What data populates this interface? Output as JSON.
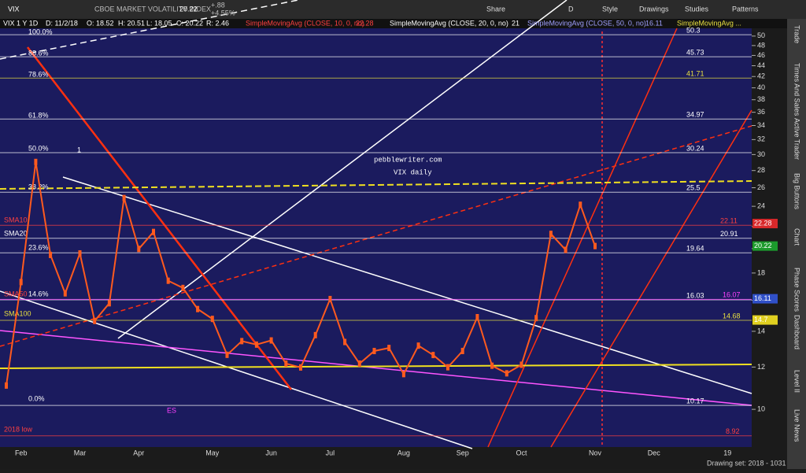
{
  "toolbar": {
    "symbol": "VIX",
    "description": "CBOE MARKET VOLATILITY INDEX",
    "last": "20.22",
    "change": "+.88",
    "change_pct": "+4.55%",
    "buttons": [
      "Share",
      "D",
      "Style",
      "Drawings",
      "Studies",
      "Patterns"
    ]
  },
  "header": {
    "items": [
      "VIX 1 Y 1D",
      "D: 11/2/18",
      "O: 18.52",
      "H: 20.51",
      "L: 18.05",
      "C: 20.22",
      "R: 2.46",
      "SimpleMovingAvg (CLOSE, 10, 0, no)",
      "22.28",
      "SimpleMovingAvg (CLOSE, 20, 0, no)",
      "21",
      "SimpleMovingAvg (CLOSE, 50, 0, no)",
      "16.11",
      "SimpleMovingAvg ..."
    ]
  },
  "side_tabs": [
    "Trade",
    "Times And Sales",
    "Active Trader",
    "Big Buttons",
    "Chart",
    "Phase Scores",
    "Dashboard",
    "Level II",
    "Live News"
  ],
  "footer": {
    "drawing_set": "Drawing set: 2018 - 1031"
  },
  "chart_data": {
    "type": "line",
    "log_scale": true,
    "categories": [
      null,
      "Feb",
      null,
      null,
      null,
      "Mar",
      null,
      null,
      null,
      "Apr",
      null,
      null,
      null,
      null,
      "May",
      null,
      null,
      null,
      "Jun",
      null,
      null,
      null,
      "Jul",
      null,
      null,
      null,
      null,
      "Aug",
      null,
      null,
      null,
      "Sep",
      null,
      null,
      null,
      "Oct",
      null,
      null,
      null,
      null,
      "Nov",
      null,
      null,
      null,
      "Dec",
      null,
      null,
      null,
      null,
      "19",
      null
    ],
    "series": [
      {
        "name": "VIX",
        "color": "#ff5a1e",
        "values": [
          11.08,
          17.31,
          29.06,
          19.46,
          16.49,
          19.59,
          14.64,
          15.8,
          24.87,
          19.97,
          21.49,
          17.41,
          16.88,
          15.41,
          14.77,
          12.65,
          13.42,
          13.22,
          13.46,
          12.18,
          11.98,
          13.77,
          16.09,
          13.37,
          12.18,
          12.86,
          13.03,
          11.64,
          13.16,
          12.64,
          11.99,
          12.86,
          14.88,
          12.07,
          11.68,
          12.12,
          14.82,
          21.31,
          19.89,
          24.16,
          20.22,
          null,
          null,
          null,
          null,
          null,
          null,
          null,
          null,
          null,
          null
        ]
      }
    ],
    "ylim": [
      8.5,
      51.7
    ],
    "yticks": [
      10,
      12,
      14,
      16,
      18,
      20,
      22,
      24,
      26,
      28,
      30,
      32,
      34,
      36,
      38,
      40,
      42,
      44,
      46,
      48,
      50
    ],
    "levels": [
      {
        "value": 50.3,
        "color": "#ffffff"
      },
      {
        "value": 45.73,
        "color": "#ffffff"
      },
      {
        "value": 41.71,
        "color": "#e8e040"
      },
      {
        "value": 34.97,
        "color": "#ffffff"
      },
      {
        "value": 30.24,
        "color": "#ffffff"
      },
      {
        "value": 25.5,
        "color": "#ffffff"
      },
      {
        "value": 22.11,
        "color": "#ff4040"
      },
      {
        "value": 20.91,
        "color": "#ffffff"
      },
      {
        "value": 19.64,
        "color": "#ffffff"
      },
      {
        "value": 16.03,
        "color": "#ffffff"
      },
      {
        "value": 16.07,
        "color": "#ff40ff"
      },
      {
        "value": 14.68,
        "color": "#e8e040"
      },
      {
        "value": 10.17,
        "color": "#ffffff"
      },
      {
        "value": 8.92,
        "color": "#ff4040"
      }
    ],
    "price_tags": [
      {
        "value": 22.28,
        "color": "#d8282a"
      },
      {
        "value": 20.22,
        "color": "#1c9a2c"
      },
      {
        "value": 16.11,
        "color": "#3050c8"
      },
      {
        "value": 14.7,
        "color": "#e0d020"
      }
    ],
    "fib_labels": [
      "100.0%",
      "88.6%",
      "78.6%",
      "61.8%",
      "50.0%",
      "38.2%",
      "23.6%",
      "14.6%",
      "0.0%"
    ],
    "annotations": [
      "pebblewriter.com",
      "VIX daily",
      "SMA10",
      "SMA20",
      "SMA50",
      "SMA100",
      "ES",
      "2018 low",
      "1"
    ]
  }
}
